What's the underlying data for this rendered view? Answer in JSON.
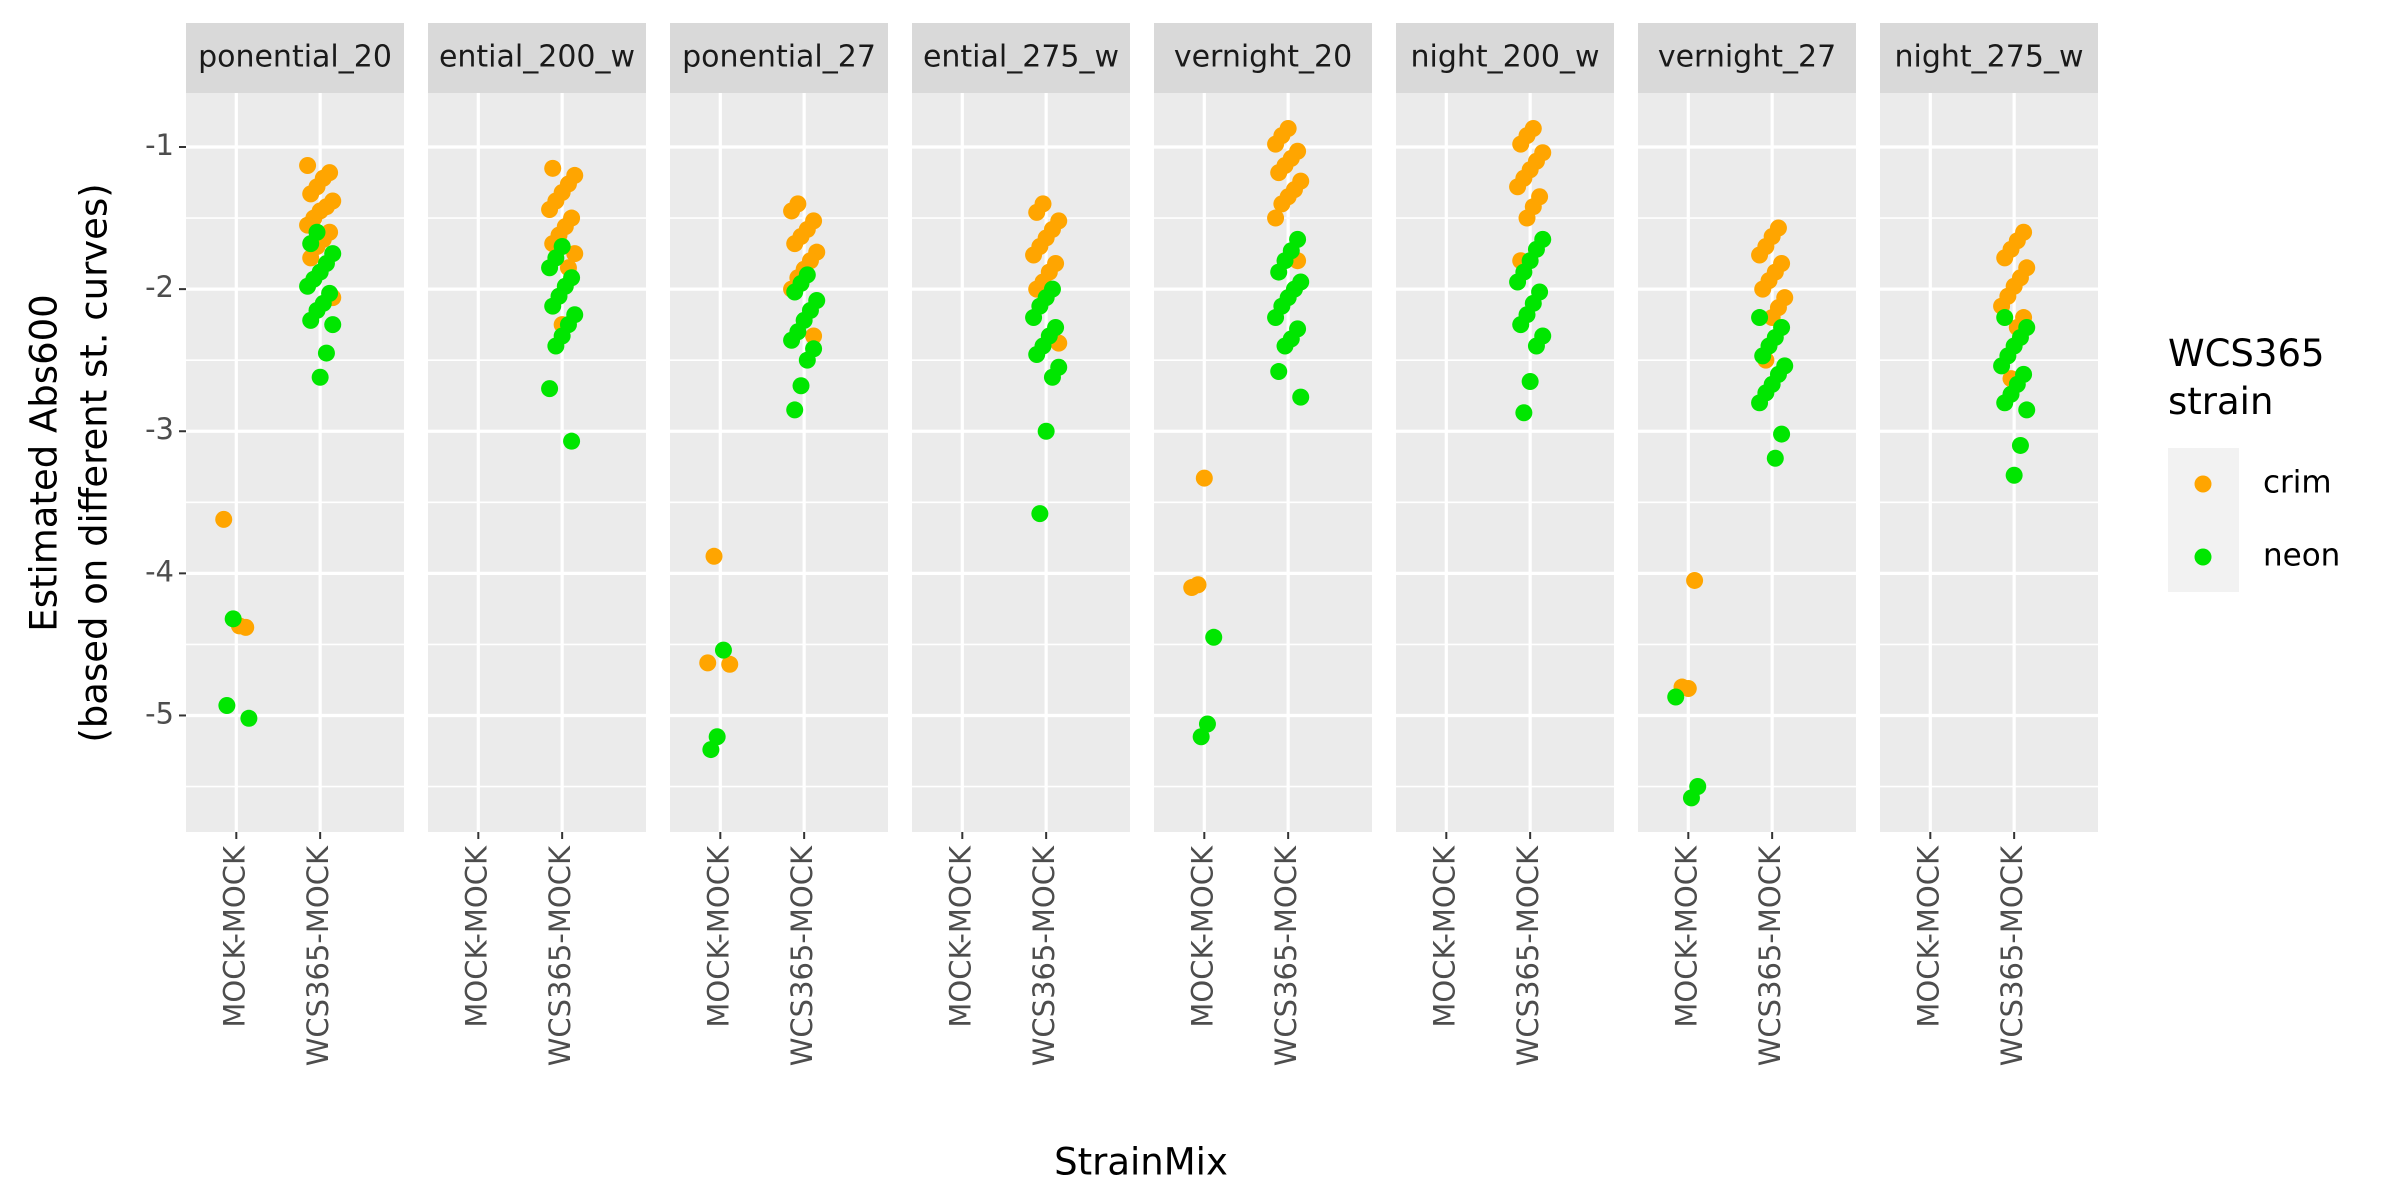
{
  "chart_data": {
    "type": "strip",
    "ylabel": [
      "Estimated Abs600",
      "(based on different st. curves)"
    ],
    "xlabel": "StrainMix",
    "legend_title": "WCS365 strain",
    "legend_position": "right",
    "categories": [
      "MOCK-MOCK",
      "WCS365-MOCK"
    ],
    "series": [
      {
        "name": "crim",
        "color": "#ffa500"
      },
      {
        "name": "neon",
        "color": "#00e600"
      }
    ],
    "ylim": [
      -5.82,
      -0.62
    ],
    "yticks": [
      -1,
      -2,
      -3,
      -4,
      -5
    ],
    "grid": true,
    "facets": [
      {
        "title": "ponential_20",
        "values": [
          [
            [
              -3.62,
              -4.38,
              -4.37
            ],
            [
              -1.13,
              -1.18,
              -1.22,
              -1.28,
              -1.33,
              -1.38,
              -1.42,
              -1.45,
              -1.5,
              -1.55,
              -1.6,
              -1.65,
              -1.7,
              -1.78,
              -2.06
            ]
          ],
          [
            [
              -4.32,
              -4.93,
              -5.02
            ],
            [
              -1.6,
              -1.68,
              -1.75,
              -1.82,
              -1.88,
              -1.93,
              -1.98,
              -2.03,
              -2.1,
              -2.15,
              -2.22,
              -2.25,
              -2.45,
              -2.62
            ]
          ]
        ]
      },
      {
        "title": "ential_200_w",
        "values": [
          [
            [],
            [
              -1.15,
              -1.2,
              -1.26,
              -1.32,
              -1.38,
              -1.44,
              -1.5,
              -1.56,
              -1.62,
              -1.68,
              -1.75,
              -1.85,
              -2.25
            ]
          ],
          [
            [],
            [
              -1.7,
              -1.78,
              -1.85,
              -1.92,
              -1.98,
              -2.05,
              -2.12,
              -2.18,
              -2.25,
              -2.33,
              -2.4,
              -2.7,
              -3.07
            ]
          ]
        ]
      },
      {
        "title": "ponential_27",
        "values": [
          [
            [
              -3.88,
              -4.63,
              -4.64
            ],
            [
              -1.4,
              -1.45,
              -1.52,
              -1.58,
              -1.63,
              -1.68,
              -1.74,
              -1.8,
              -1.86,
              -1.92,
              -2.0,
              -2.33
            ]
          ],
          [
            [
              -4.54,
              -5.15,
              -5.24
            ],
            [
              -1.9,
              -1.96,
              -2.02,
              -2.08,
              -2.15,
              -2.22,
              -2.3,
              -2.36,
              -2.42,
              -2.5,
              -2.68,
              -2.85
            ]
          ]
        ]
      },
      {
        "title": "ential_275_w",
        "values": [
          [
            [],
            [
              -1.4,
              -1.46,
              -1.52,
              -1.58,
              -1.64,
              -1.7,
              -1.76,
              -1.82,
              -1.88,
              -1.95,
              -2.0,
              -2.38
            ]
          ],
          [
            [],
            [
              -2.0,
              -2.06,
              -2.12,
              -2.2,
              -2.27,
              -2.33,
              -2.4,
              -2.46,
              -2.55,
              -2.62,
              -3.0,
              -3.58
            ]
          ]
        ]
      },
      {
        "title": "vernight_20",
        "values": [
          [
            [
              -3.33,
              -4.08,
              -4.1
            ],
            [
              -0.87,
              -0.92,
              -0.98,
              -1.03,
              -1.08,
              -1.13,
              -1.18,
              -1.24,
              -1.3,
              -1.35,
              -1.4,
              -1.5,
              -1.8
            ]
          ],
          [
            [
              -4.45,
              -5.06,
              -5.15
            ],
            [
              -1.65,
              -1.73,
              -1.8,
              -1.88,
              -1.95,
              -2.0,
              -2.06,
              -2.12,
              -2.2,
              -2.28,
              -2.35,
              -2.4,
              -2.58,
              -2.76
            ]
          ]
        ]
      },
      {
        "title": "night_200_w",
        "values": [
          [
            [],
            [
              -0.87,
              -0.92,
              -0.98,
              -1.04,
              -1.1,
              -1.16,
              -1.22,
              -1.28,
              -1.35,
              -1.42,
              -1.5,
              -1.8
            ]
          ],
          [
            [],
            [
              -1.65,
              -1.72,
              -1.8,
              -1.88,
              -1.95,
              -2.02,
              -2.1,
              -2.18,
              -2.25,
              -2.33,
              -2.4,
              -2.65,
              -2.87
            ]
          ]
        ]
      },
      {
        "title": "vernight_27",
        "values": [
          [
            [
              -4.05,
              -4.81,
              -4.8
            ],
            [
              -1.57,
              -1.63,
              -1.7,
              -1.76,
              -1.82,
              -1.88,
              -1.94,
              -2.0,
              -2.06,
              -2.13,
              -2.2,
              -2.5
            ]
          ],
          [
            [
              -4.87,
              -5.5,
              -5.58
            ],
            [
              -2.2,
              -2.27,
              -2.34,
              -2.4,
              -2.47,
              -2.54,
              -2.6,
              -2.67,
              -2.73,
              -2.8,
              -3.02,
              -3.19
            ]
          ]
        ]
      },
      {
        "title": "night_275_w",
        "values": [
          [
            [],
            [
              -1.6,
              -1.66,
              -1.72,
              -1.78,
              -1.85,
              -1.92,
              -1.98,
              -2.05,
              -2.12,
              -2.2,
              -2.27,
              -2.63
            ]
          ],
          [
            [],
            [
              -2.2,
              -2.27,
              -2.34,
              -2.4,
              -2.47,
              -2.54,
              -2.6,
              -2.67,
              -2.74,
              -2.8,
              -2.85,
              -3.1,
              -3.31
            ]
          ]
        ]
      }
    ]
  }
}
